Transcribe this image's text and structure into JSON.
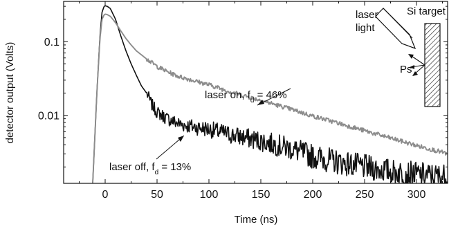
{
  "chart_data": {
    "type": "line",
    "xlabel": "Time (ns)",
    "ylabel": "detector output (Volts)",
    "xlim": [
      -40,
      330
    ],
    "ylim": [
      0.0012,
      0.35
    ],
    "y_scale": "log",
    "x_ticks": [
      0,
      50,
      100,
      150,
      200,
      250,
      300
    ],
    "x_tick_labels": [
      "0",
      "50",
      "100",
      "150",
      "200",
      "250",
      "300"
    ],
    "y_ticks": [
      0.01,
      0.1
    ],
    "y_tick_labels": [
      "0.01",
      "0.1"
    ],
    "grid": false,
    "series": [
      {
        "label_main": "laser off, f",
        "label_sub": "d",
        "label_tail": " = 13%",
        "color": "#111111",
        "x": [
          -12,
          -8,
          -5,
          -3,
          -1,
          0,
          2,
          5,
          10,
          15,
          20,
          25,
          30,
          35,
          40,
          45,
          50,
          60,
          70,
          80,
          100,
          120,
          150,
          180,
          200,
          220,
          250,
          280,
          300,
          320,
          330
        ],
        "y": [
          0.0012,
          0.02,
          0.12,
          0.25,
          0.3,
          0.305,
          0.3,
          0.28,
          0.2,
          0.12,
          0.075,
          0.05,
          0.035,
          0.025,
          0.02,
          0.014,
          0.011,
          0.009,
          0.0078,
          0.0072,
          0.0065,
          0.0055,
          0.0045,
          0.0035,
          0.0028,
          0.0024,
          0.002,
          0.0017,
          0.0016,
          0.0015,
          0.0015
        ]
      },
      {
        "label_main": "laser on, f",
        "label_sub": "d",
        "label_tail": " = 46%",
        "color": "#8c8c8c",
        "x": [
          -12,
          -8,
          -5,
          -3,
          -1,
          0,
          2,
          5,
          10,
          15,
          20,
          25,
          30,
          40,
          50,
          60,
          70,
          80,
          100,
          120,
          150,
          180,
          200,
          220,
          250,
          280,
          300,
          320,
          330
        ],
        "y": [
          0.0012,
          0.02,
          0.11,
          0.2,
          0.23,
          0.235,
          0.232,
          0.22,
          0.18,
          0.14,
          0.11,
          0.09,
          0.075,
          0.058,
          0.046,
          0.039,
          0.034,
          0.031,
          0.026,
          0.021,
          0.016,
          0.012,
          0.0098,
          0.0082,
          0.0062,
          0.0047,
          0.0039,
          0.0033,
          0.003
        ]
      }
    ]
  },
  "inset": {
    "laser_line1": "laser",
    "laser_line2": "light",
    "target_label": "Si target",
    "ps_label": "Ps"
  }
}
